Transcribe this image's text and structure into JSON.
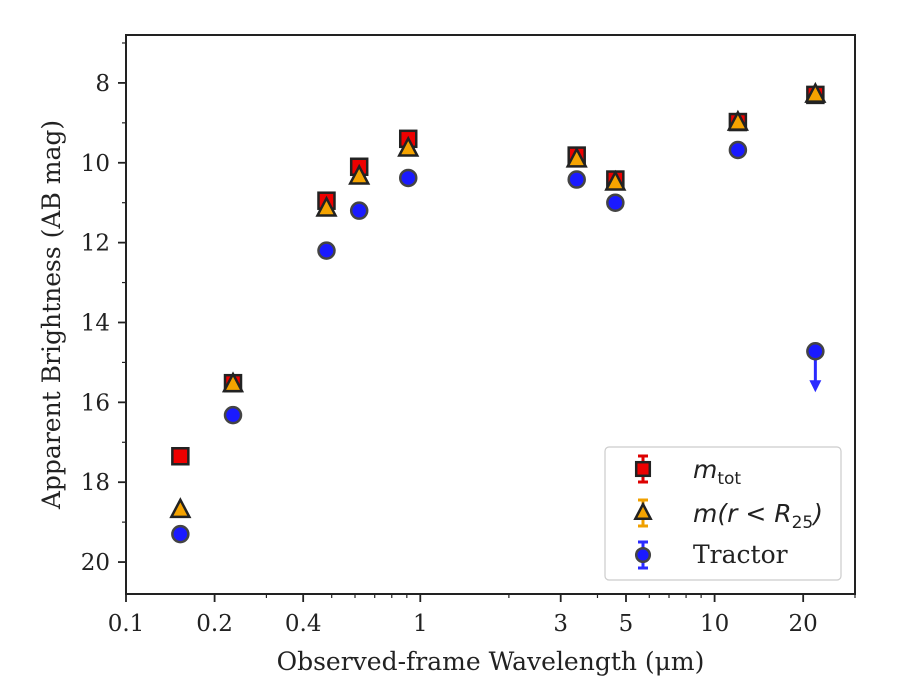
{
  "chart_data": {
    "type": "scatter",
    "title": "",
    "xlabel": "Observed-frame Wavelength (μm)",
    "ylabel": "Apparent Brightness (AB mag)",
    "x_scale": "log",
    "xlim": [
      0.1,
      30
    ],
    "ylim": [
      20.8,
      6.8
    ],
    "y_inverted": true,
    "grid": false,
    "legend_position": "lower-right",
    "x_ticks": [
      0.1,
      0.2,
      0.4,
      1,
      3,
      5,
      10,
      20
    ],
    "x_tick_labels": [
      "0.1",
      "0.2",
      "0.4",
      "1",
      "3",
      "5",
      "10",
      "20"
    ],
    "y_ticks": [
      8,
      10,
      12,
      14,
      16,
      18,
      20
    ],
    "y_tick_labels": [
      "8",
      "10",
      "12",
      "14",
      "16",
      "18",
      "20"
    ],
    "series": [
      {
        "name": "m_tot",
        "legend_main": "m",
        "legend_sub": "tot",
        "marker": "square",
        "color": "#ee0000",
        "x": [
          0.153,
          0.231,
          0.48,
          0.62,
          0.91,
          3.4,
          4.6,
          12.0,
          22.0
        ],
        "y": [
          17.35,
          15.52,
          10.95,
          10.1,
          9.4,
          9.82,
          10.42,
          8.98,
          8.3
        ]
      },
      {
        "name": "m(r < R_25)",
        "legend_main": "m(r < R",
        "legend_sub": "25",
        "legend_tail": ")",
        "marker": "triangle",
        "color": "#f5a300",
        "x": [
          0.153,
          0.231,
          0.48,
          0.62,
          0.91,
          3.4,
          4.6,
          12.0,
          22.0
        ],
        "y": [
          18.7,
          15.55,
          11.15,
          10.35,
          9.65,
          9.92,
          10.5,
          9.0,
          8.3
        ]
      },
      {
        "name": "Tractor",
        "marker": "circle",
        "color": "#1a1aff",
        "x": [
          0.153,
          0.231,
          0.48,
          0.62,
          0.91,
          3.4,
          4.6,
          12.0,
          22.0
        ],
        "y": [
          19.3,
          16.32,
          12.2,
          11.2,
          10.38,
          10.42,
          11.0,
          9.68,
          14.72
        ],
        "upper_limit": [
          false,
          false,
          false,
          false,
          false,
          false,
          false,
          false,
          true
        ]
      }
    ]
  }
}
